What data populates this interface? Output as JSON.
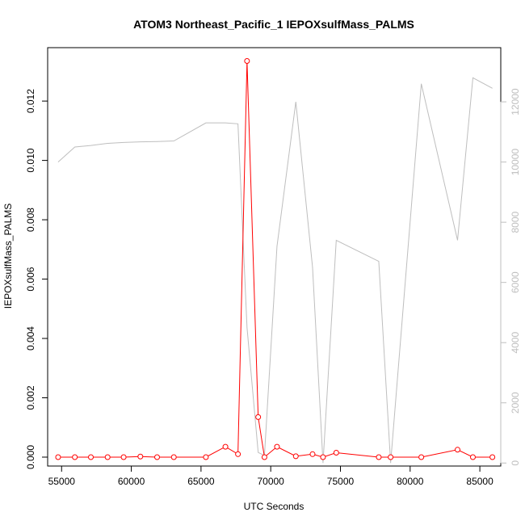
{
  "chart_data": {
    "type": "line",
    "title": "ATOM3 Northeast_Pacific_1 IEPOXsulfMass_PALMS",
    "xlabel": "UTC Seconds",
    "ylabel": "IEPOXsulfMass_PALMS",
    "xlim": [
      54000,
      86500
    ],
    "ylim": [
      -0.0003,
      0.0138
    ],
    "y2lim": [
      -100,
      13800
    ],
    "x_ticks": [
      55000,
      60000,
      65000,
      70000,
      75000,
      80000,
      85000
    ],
    "x_tick_labels": [
      "55000",
      "60000",
      "65000",
      "70000",
      "75000",
      "80000",
      "85000"
    ],
    "y_ticks": [
      0,
      0.002,
      0.004,
      0.006,
      0.008,
      0.01,
      0.012
    ],
    "y_tick_labels": [
      "0.000",
      "0.002",
      "0.004",
      "0.006",
      "0.008",
      "0.010",
      "0.012"
    ],
    "y2_ticks": [
      0,
      2000,
      4000,
      6000,
      8000,
      10000,
      12000
    ],
    "y2_tick_labels": [
      "0",
      "2000",
      "4000",
      "6000",
      "8000",
      "10000",
      "12000"
    ],
    "grid": false,
    "series": [
      {
        "color": "#ff0000",
        "axis": "left",
        "markers": "open-circle",
        "x": [
          54750,
          55950,
          57100,
          58300,
          59450,
          60650,
          61850,
          63050,
          65350,
          66750,
          67650,
          68300,
          69100,
          69550,
          70450,
          71800,
          73000,
          73750,
          74700,
          77750,
          78600,
          80800,
          83400,
          84500,
          85900
        ],
        "y": [
          0.0,
          0.0,
          0.0,
          0.0,
          0.0,
          2e-05,
          0.0,
          0.0,
          0.0,
          0.00035,
          0.0001,
          0.01335,
          0.00135,
          0.0,
          0.00035,
          3e-05,
          0.0001,
          0.0,
          0.00015,
          0.0,
          0.0,
          0.0,
          0.00025,
          0.0,
          0.0
        ]
      },
      {
        "color": "#bebebe",
        "axis": "right",
        "x": [
          54750,
          55950,
          57100,
          58300,
          59450,
          60650,
          61850,
          63050,
          65350,
          66750,
          67650,
          68300,
          69100,
          69550,
          70450,
          71800,
          73000,
          73750,
          74700,
          77750,
          78600,
          80800,
          83400,
          84500,
          85900
        ],
        "y": [
          10000,
          10500,
          10550,
          10620,
          10650,
          10670,
          10680,
          10700,
          11300,
          11300,
          11270,
          4500,
          350,
          250,
          7200,
          12000,
          6500,
          0,
          7400,
          6700,
          0,
          12600,
          7400,
          12800,
          12450
        ]
      }
    ]
  }
}
